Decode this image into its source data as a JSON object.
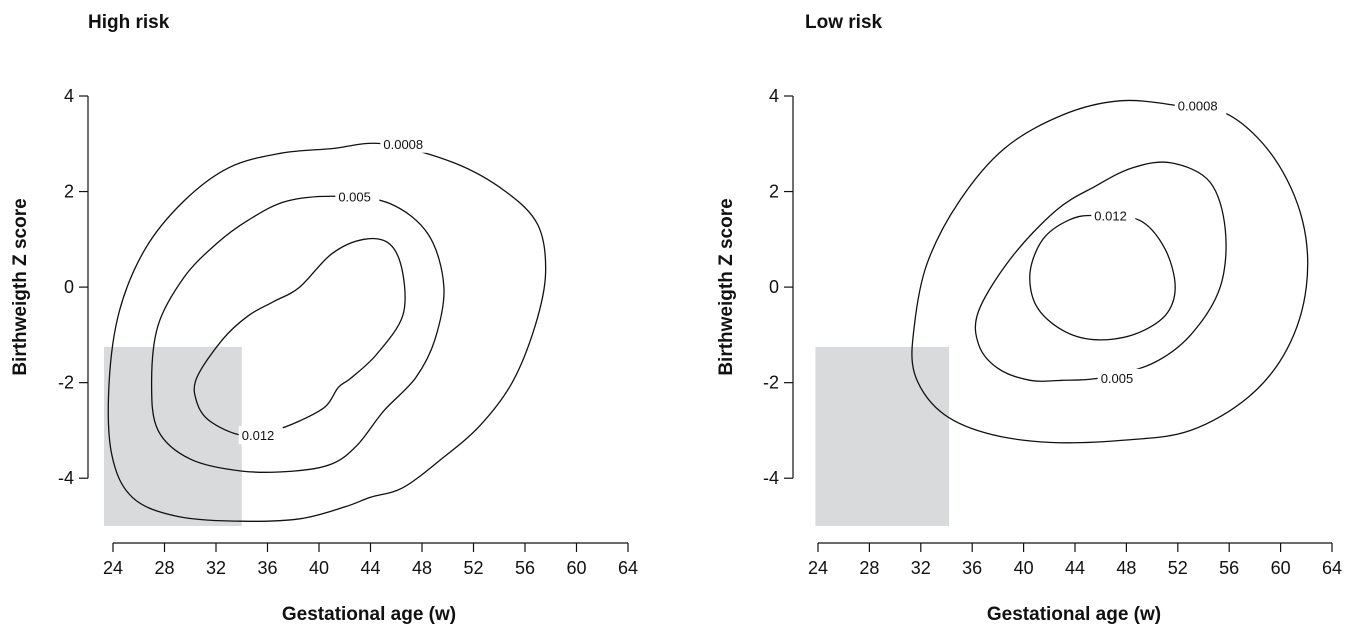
{
  "chart_data": [
    {
      "type": "contour",
      "title": "High risk",
      "xlabel": "Gestational age (w)",
      "ylabel": "Birthweigth Z score",
      "xlim": [
        23.5,
        64
      ],
      "ylim": [
        -5,
        4
      ],
      "xticks": [
        24,
        28,
        32,
        36,
        40,
        44,
        48,
        52,
        56,
        60,
        64
      ],
      "yticks": [
        -4,
        -2,
        0,
        2,
        4
      ],
      "shaded_region": {
        "x": [
          23.3,
          34
        ],
        "y": [
          -5,
          -1.25
        ]
      },
      "contours": [
        {
          "level": "0.0008",
          "label_at": [
            45.0,
            3.0
          ],
          "points": [
            [
              45.0,
              3.0
            ],
            [
              50.5,
              2.6
            ],
            [
              54.5,
              2.0
            ],
            [
              57.0,
              1.3
            ],
            [
              57.6,
              0.3
            ],
            [
              56.8,
              -0.8
            ],
            [
              55.0,
              -2.0
            ],
            [
              52.5,
              -2.9
            ],
            [
              49.5,
              -3.6
            ],
            [
              46.5,
              -4.2
            ],
            [
              44.0,
              -4.4
            ],
            [
              42.0,
              -4.6
            ],
            [
              38.5,
              -4.85
            ],
            [
              34.0,
              -4.9
            ],
            [
              29.0,
              -4.8
            ],
            [
              25.5,
              -4.4
            ],
            [
              23.9,
              -3.5
            ],
            [
              23.7,
              -2.0
            ],
            [
              24.5,
              -0.5
            ],
            [
              26.5,
              0.8
            ],
            [
              29.5,
              1.8
            ],
            [
              33.0,
              2.5
            ],
            [
              37.0,
              2.8
            ],
            [
              41.0,
              2.9
            ],
            [
              45.0,
              3.0
            ]
          ]
        },
        {
          "level": "0.005",
          "label_at": [
            41.5,
            1.9
          ],
          "points": [
            [
              41.5,
              1.9
            ],
            [
              45.5,
              1.75
            ],
            [
              48.5,
              1.1
            ],
            [
              49.7,
              0.0
            ],
            [
              49.0,
              -1.1
            ],
            [
              47.5,
              -1.9
            ],
            [
              45.0,
              -2.6
            ],
            [
              43.0,
              -3.3
            ],
            [
              41.0,
              -3.7
            ],
            [
              38.0,
              -3.85
            ],
            [
              34.0,
              -3.85
            ],
            [
              30.0,
              -3.6
            ],
            [
              27.5,
              -3.0
            ],
            [
              27.0,
              -2.0
            ],
            [
              27.5,
              -0.8
            ],
            [
              29.5,
              0.2
            ],
            [
              32.0,
              0.9
            ],
            [
              34.5,
              1.4
            ],
            [
              37.5,
              1.8
            ],
            [
              41.5,
              1.9
            ]
          ]
        },
        {
          "level": "0.012",
          "label_at": [
            34.0,
            -3.1
          ],
          "points": [
            [
              34.0,
              -3.1
            ],
            [
              36.5,
              -3.0
            ],
            [
              38.5,
              -2.8
            ],
            [
              40.5,
              -2.5
            ],
            [
              41.5,
              -2.1
            ],
            [
              42.5,
              -1.9
            ],
            [
              44.5,
              -1.4
            ],
            [
              46.5,
              -0.6
            ],
            [
              46.5,
              0.3
            ],
            [
              45.5,
              0.9
            ],
            [
              43.5,
              1.0
            ],
            [
              41.0,
              0.7
            ],
            [
              38.5,
              0.0
            ],
            [
              36.5,
              -0.3
            ],
            [
              34.5,
              -0.6
            ],
            [
              32.5,
              -1.1
            ],
            [
              30.5,
              -1.9
            ],
            [
              30.5,
              -2.4
            ],
            [
              31.5,
              -2.8
            ],
            [
              34.0,
              -3.1
            ]
          ]
        }
      ]
    },
    {
      "type": "contour",
      "title": "Low risk",
      "xlabel": "Gestational age (w)",
      "ylabel": "Birthweigth Z score",
      "xlim": [
        23.5,
        64
      ],
      "ylim": [
        -5,
        4
      ],
      "xticks": [
        24,
        28,
        32,
        36,
        40,
        44,
        48,
        52,
        56,
        60,
        64
      ],
      "yticks": [
        -4,
        -2,
        0,
        2,
        4
      ],
      "shaded_region": {
        "x": [
          23.8,
          34.2
        ],
        "y": [
          -5,
          -1.25
        ]
      },
      "contours": [
        {
          "level": "0.0008",
          "label_at": [
            52.0,
            3.8
          ],
          "points": [
            [
              52.0,
              3.8
            ],
            [
              56.0,
              3.6
            ],
            [
              59.5,
              2.7
            ],
            [
              61.7,
              1.4
            ],
            [
              62.0,
              0.0
            ],
            [
              60.5,
              -1.3
            ],
            [
              57.5,
              -2.3
            ],
            [
              53.0,
              -3.0
            ],
            [
              48.0,
              -3.2
            ],
            [
              42.0,
              -3.25
            ],
            [
              37.0,
              -3.05
            ],
            [
              33.5,
              -2.6
            ],
            [
              31.5,
              -1.8
            ],
            [
              31.5,
              -0.8
            ],
            [
              32.5,
              0.5
            ],
            [
              35.0,
              1.8
            ],
            [
              38.5,
              2.9
            ],
            [
              43.0,
              3.6
            ],
            [
              47.5,
              3.9
            ],
            [
              52.0,
              3.8
            ]
          ]
        },
        {
          "level": "0.005",
          "label_at": [
            46.0,
            -1.9
          ],
          "points": [
            [
              46.0,
              -1.9
            ],
            [
              50.0,
              -1.6
            ],
            [
              53.0,
              -1.0
            ],
            [
              55.3,
              0.0
            ],
            [
              55.7,
              1.2
            ],
            [
              54.5,
              2.2
            ],
            [
              51.5,
              2.6
            ],
            [
              48.5,
              2.5
            ],
            [
              45.5,
              2.1
            ],
            [
              42.5,
              1.6
            ],
            [
              39.0,
              0.6
            ],
            [
              36.5,
              -0.5
            ],
            [
              36.5,
              -1.2
            ],
            [
              38.0,
              -1.7
            ],
            [
              40.5,
              -1.95
            ],
            [
              43.0,
              -1.95
            ],
            [
              46.0,
              -1.9
            ]
          ]
        },
        {
          "level": "0.012",
          "label_at": [
            45.5,
            1.5
          ],
          "points": [
            [
              45.5,
              1.5
            ],
            [
              49.0,
              1.4
            ],
            [
              51.0,
              0.8
            ],
            [
              51.8,
              0.0
            ],
            [
              51.0,
              -0.6
            ],
            [
              48.5,
              -1.0
            ],
            [
              45.5,
              -1.1
            ],
            [
              43.0,
              -0.9
            ],
            [
              41.0,
              -0.4
            ],
            [
              40.5,
              0.3
            ],
            [
              41.5,
              1.0
            ],
            [
              43.5,
              1.4
            ],
            [
              45.5,
              1.5
            ]
          ]
        }
      ]
    }
  ]
}
